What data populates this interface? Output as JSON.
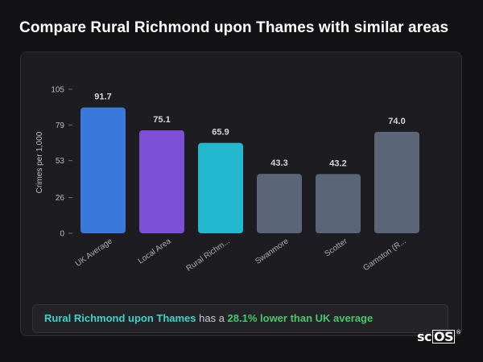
{
  "page": {
    "title": "Compare Rural Richmond upon Thames with similar areas"
  },
  "chart_data": {
    "type": "bar",
    "title": "",
    "ylabel": "Crimes per 1,000",
    "xlabel": "",
    "ylim": [
      0,
      105
    ],
    "yticks": [
      0,
      26,
      53,
      79,
      105
    ],
    "grid": false,
    "categories": [
      "UK Average",
      "Local Area",
      "Rural Richm...",
      "Swanmore",
      "Scotter",
      "Gamston (R..."
    ],
    "values": [
      91.7,
      75.1,
      65.9,
      43.3,
      43.2,
      74.0
    ],
    "value_labels": [
      "91.7",
      "75.1",
      "65.9",
      "43.3",
      "43.2",
      "74.0"
    ],
    "colors": [
      "#3b78db",
      "#7c4fd6",
      "#22b8cf",
      "#5a6578",
      "#5a6578",
      "#5a6578"
    ]
  },
  "summary": {
    "place": "Rural Richmond upon Thames",
    "middle": " has a ",
    "difference": "28.1% lower than UK average"
  },
  "logo": {
    "prefix": "sc",
    "boxed": "OS",
    "mark": "®"
  }
}
